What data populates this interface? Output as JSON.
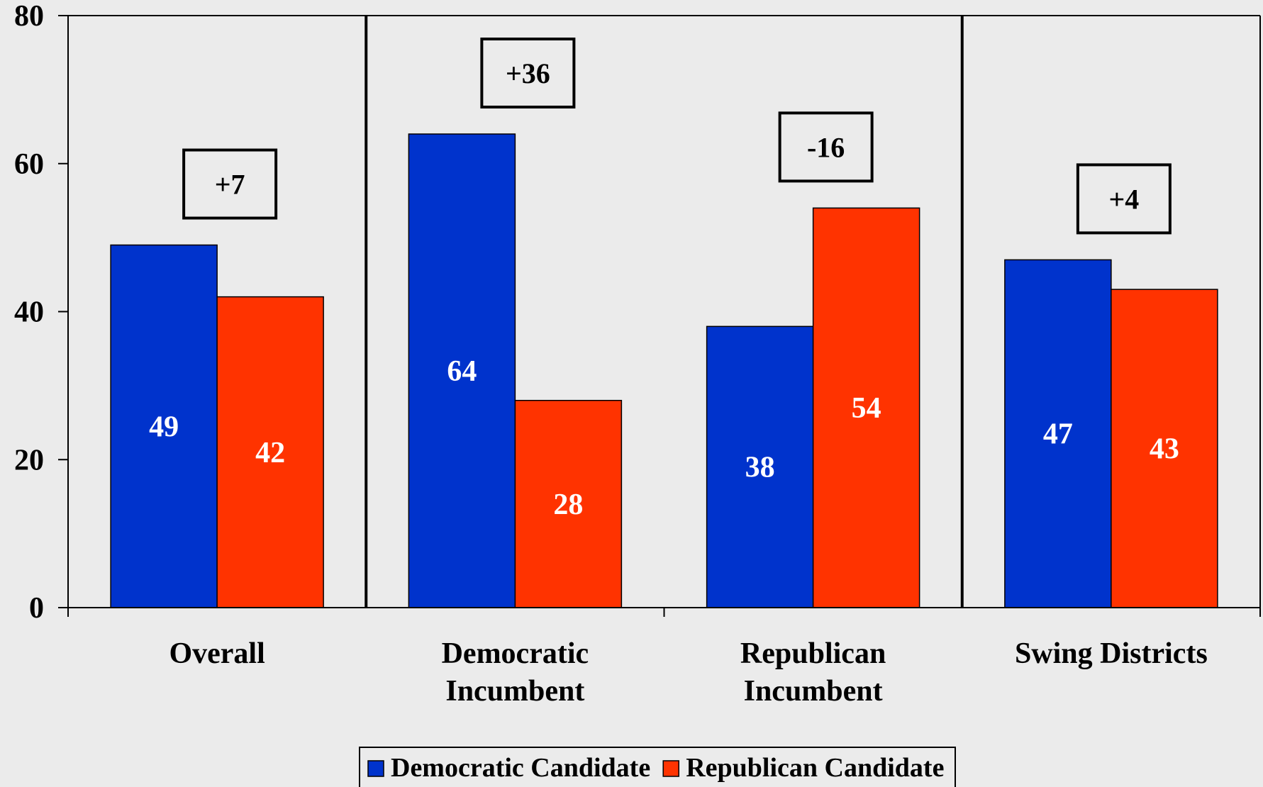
{
  "chart_data": {
    "type": "bar",
    "title": "",
    "xlabel": "",
    "ylabel": "",
    "ylim": [
      0,
      80
    ],
    "yticks": [
      0,
      20,
      40,
      60,
      80
    ],
    "grid": false,
    "legend_position": "bottom",
    "categories": [
      [
        "Overall"
      ],
      [
        "Democratic",
        "Incumbent"
      ],
      [
        "Republican",
        "Incumbent"
      ],
      [
        "Swing Districts"
      ]
    ],
    "series": [
      {
        "name": "Democratic Candidate",
        "color": "#0033cc",
        "values": [
          49,
          64,
          38,
          47
        ]
      },
      {
        "name": "Republican Candidate",
        "color": "#ff3300",
        "values": [
          42,
          28,
          54,
          43
        ]
      }
    ],
    "annotations": [
      "+7",
      "+36",
      "-16",
      "+4"
    ]
  }
}
